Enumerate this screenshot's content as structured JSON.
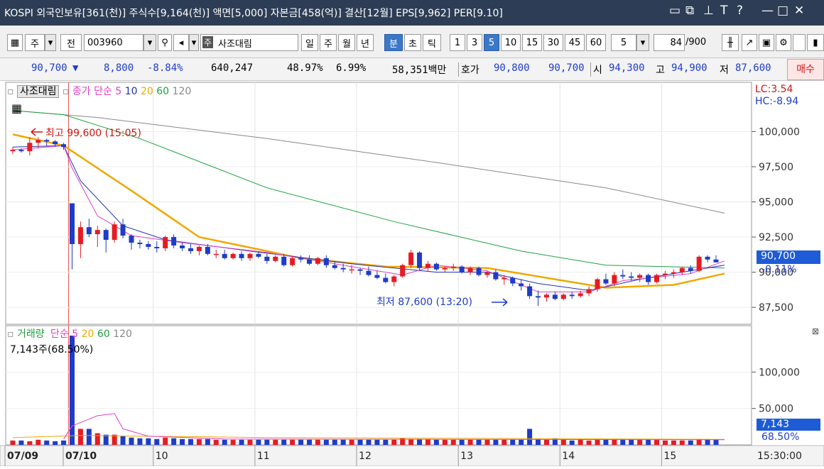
{
  "title": "KOSPI 외국인보유[361(천)] 주식수[9,164(천)] 액면[5,000] 자본금[458(억)] 결산[12월] EPS[9,962] PER[9.10]",
  "toolbar": {
    "market": "주",
    "type": "전",
    "code": "003960",
    "badge": "주",
    "name": "사조대림",
    "periods": [
      "일",
      "주",
      "월",
      "년",
      "분",
      "초",
      "틱"
    ],
    "minutes": [
      "1",
      "3",
      "5",
      "10",
      "15",
      "30",
      "45",
      "60"
    ],
    "sel": "5",
    "count": "84",
    "total": "/900"
  },
  "quote": {
    "price": "90,700",
    "change": "8,800",
    "rate": "-8.84%",
    "volume": "640,247",
    "vol_rate": "48.97%",
    "turnover": "6.99%",
    "amount": "58,351백만",
    "hoga_label": "호가",
    "ask": "90,800",
    "bid": "90,700",
    "open_label": "시",
    "open": "94,300",
    "high_label": "고",
    "high": "94,900",
    "low_label": "저",
    "low": "87,600",
    "buy": "매수"
  },
  "price_panel": {
    "name": "사조대림",
    "legend": [
      "종가 단순",
      "5",
      "10",
      "20",
      "60",
      "120"
    ],
    "lc": "LC:3.54",
    "hc": "HC:-8.94",
    "high_note": "최고 99,600 (15:05)",
    "low_note": "최저 87,600 (13:20)",
    "cur": "90,700",
    "cur_pct": "-0.11%"
  },
  "volume_panel": {
    "legend": [
      "거래량",
      "단순 5",
      "20",
      "60",
      "120"
    ],
    "info": "7,143주(68.50%)",
    "cur": "7,143",
    "cur_pct": "68.50%"
  },
  "x_labels": [
    "07/09",
    "07/10",
    "10",
    "11",
    "12",
    "13",
    "14",
    "15",
    "15:30:00"
  ],
  "colors": {
    "up": "#e51c23",
    "down": "#1e3cc8",
    "ma5": "#e040c0",
    "ma10": "#2030b0",
    "ma20": "#f0a800",
    "ma60": "#20a040",
    "ma120": "#888888"
  },
  "chart_data": {
    "type": "candlestick",
    "y_ticks": [
      100000,
      97500,
      95000,
      92500,
      90000,
      87500
    ],
    "y_range": [
      86300,
      103500
    ],
    "vol_ticks": [
      100000,
      50000
    ],
    "vol_range": [
      0,
      150000
    ],
    "candles": [
      [
        98600,
        98900,
        98400,
        98700
      ],
      [
        98700,
        98800,
        98500,
        98600
      ],
      [
        98600,
        99600,
        98300,
        99200
      ],
      [
        99200,
        99600,
        98800,
        99400
      ],
      [
        99400,
        99500,
        99000,
        99300
      ],
      [
        99300,
        99400,
        98900,
        99100
      ],
      [
        99100,
        99200,
        98700,
        98900
      ],
      [
        94900,
        94900,
        90200,
        92000
      ],
      [
        92000,
        93600,
        91000,
        93200
      ],
      [
        93200,
        93800,
        92500,
        92700
      ],
      [
        92700,
        93300,
        91800,
        93000
      ],
      [
        93000,
        93100,
        91400,
        92300
      ],
      [
        92300,
        93600,
        92100,
        93400
      ],
      [
        93400,
        93800,
        92400,
        92600
      ],
      [
        92600,
        92700,
        91600,
        92100
      ],
      [
        92100,
        92300,
        91700,
        92000
      ],
      [
        92000,
        92200,
        91600,
        91800
      ],
      [
        91800,
        92200,
        91400,
        91700
      ],
      [
        91700,
        92600,
        91500,
        92500
      ],
      [
        92500,
        92700,
        91700,
        91900
      ],
      [
        91900,
        92100,
        91500,
        91700
      ],
      [
        91700,
        92000,
        91300,
        91500
      ],
      [
        91500,
        91900,
        91200,
        91800
      ],
      [
        91800,
        92000,
        91200,
        91300
      ],
      [
        91300,
        91600,
        91000,
        91300
      ],
      [
        91300,
        91600,
        90900,
        91000
      ],
      [
        91000,
        91400,
        90900,
        91300
      ],
      [
        91300,
        91500,
        90800,
        91000
      ],
      [
        91000,
        91400,
        90800,
        91300
      ],
      [
        91300,
        91500,
        91000,
        91100
      ],
      [
        91100,
        91300,
        90600,
        90800
      ],
      [
        90800,
        91200,
        90700,
        91100
      ],
      [
        91100,
        91300,
        90400,
        90500
      ],
      [
        90500,
        91100,
        90400,
        91000
      ],
      [
        91000,
        91200,
        90700,
        90900
      ],
      [
        90900,
        91200,
        90500,
        90600
      ],
      [
        90600,
        91100,
        90500,
        91000
      ],
      [
        91000,
        91200,
        90300,
        90500
      ],
      [
        90500,
        90800,
        90200,
        90300
      ],
      [
        90300,
        90600,
        90000,
        90200
      ],
      [
        90200,
        90500,
        89900,
        90200
      ],
      [
        90200,
        90300,
        89800,
        90100
      ],
      [
        90100,
        90400,
        89700,
        89800
      ],
      [
        89800,
        90100,
        89500,
        89600
      ],
      [
        89600,
        89900,
        89200,
        89300
      ],
      [
        89300,
        89800,
        89000,
        89700
      ],
      [
        89700,
        90600,
        89600,
        90500
      ],
      [
        90500,
        91600,
        90300,
        91400
      ],
      [
        91400,
        91500,
        90100,
        90300
      ],
      [
        90300,
        90800,
        90100,
        90600
      ],
      [
        90600,
        90700,
        90100,
        90200
      ],
      [
        90200,
        90400,
        90000,
        90300
      ],
      [
        90300,
        90600,
        90100,
        90400
      ],
      [
        90400,
        90500,
        89900,
        90000
      ],
      [
        90000,
        90400,
        89800,
        90300
      ],
      [
        90300,
        90400,
        89700,
        89800
      ],
      [
        89800,
        90100,
        89600,
        90000
      ],
      [
        90000,
        90200,
        89400,
        89500
      ],
      [
        89500,
        89800,
        89100,
        89600
      ],
      [
        89600,
        89700,
        89000,
        89200
      ],
      [
        89200,
        89500,
        88700,
        89000
      ],
      [
        89000,
        89200,
        88100,
        88300
      ],
      [
        88300,
        88700,
        87600,
        88200
      ],
      [
        88200,
        88500,
        87900,
        88400
      ],
      [
        88400,
        88600,
        88000,
        88100
      ],
      [
        88100,
        88500,
        88000,
        88400
      ],
      [
        88400,
        88600,
        88100,
        88300
      ],
      [
        88300,
        88700,
        88200,
        88500
      ],
      [
        88500,
        89000,
        88300,
        88800
      ],
      [
        88800,
        89600,
        88600,
        89500
      ],
      [
        89500,
        89900,
        89100,
        89200
      ],
      [
        89200,
        90000,
        89000,
        89800
      ],
      [
        89800,
        90200,
        89500,
        89700
      ],
      [
        89700,
        90000,
        89400,
        89600
      ],
      [
        89600,
        89900,
        89300,
        89800
      ],
      [
        89800,
        89900,
        89100,
        89300
      ],
      [
        89300,
        89900,
        89200,
        89800
      ],
      [
        89800,
        90100,
        89500,
        89900
      ],
      [
        89900,
        90200,
        89600,
        90000
      ],
      [
        90000,
        90400,
        89800,
        90300
      ],
      [
        90300,
        90500,
        89900,
        90100
      ],
      [
        90100,
        91200,
        90000,
        91100
      ],
      [
        91100,
        91200,
        90700,
        90900
      ],
      [
        90900,
        91200,
        90700,
        90700
      ]
    ],
    "ma5": [
      [
        0,
        98700
      ],
      [
        6,
        99000
      ],
      [
        7,
        97400
      ],
      [
        10,
        94000
      ],
      [
        14,
        92600
      ],
      [
        20,
        92100
      ],
      [
        30,
        91400
      ],
      [
        40,
        90400
      ],
      [
        46,
        89800
      ],
      [
        50,
        90500
      ],
      [
        56,
        90100
      ],
      [
        62,
        88600
      ],
      [
        68,
        88600
      ],
      [
        72,
        89400
      ],
      [
        80,
        89900
      ],
      [
        84,
        90800
      ]
    ],
    "ma10": [
      [
        0,
        98900
      ],
      [
        6,
        99000
      ],
      [
        8,
        96500
      ],
      [
        13,
        93300
      ],
      [
        18,
        92300
      ],
      [
        28,
        91500
      ],
      [
        40,
        90600
      ],
      [
        50,
        90000
      ],
      [
        56,
        90000
      ],
      [
        62,
        89200
      ],
      [
        68,
        88700
      ],
      [
        74,
        89500
      ],
      [
        84,
        90500
      ]
    ],
    "ma20": [
      [
        0,
        99800
      ],
      [
        6,
        99000
      ],
      [
        14,
        95800
      ],
      [
        22,
        92500
      ],
      [
        34,
        91000
      ],
      [
        44,
        90400
      ],
      [
        56,
        90300
      ],
      [
        64,
        89500
      ],
      [
        70,
        88900
      ],
      [
        78,
        89100
      ],
      [
        84,
        89900
      ]
    ],
    "ma60": [
      [
        0,
        101500
      ],
      [
        6,
        101200
      ],
      [
        15,
        99500
      ],
      [
        30,
        96000
      ],
      [
        45,
        93600
      ],
      [
        60,
        91500
      ],
      [
        70,
        90500
      ],
      [
        84,
        90300
      ]
    ],
    "ma120": [
      [
        0,
        101500
      ],
      [
        10,
        101000
      ],
      [
        30,
        99500
      ],
      [
        50,
        97800
      ],
      [
        70,
        96000
      ],
      [
        84,
        94200
      ]
    ],
    "volumes": [
      6000,
      6000,
      5000,
      7000,
      6000,
      5000,
      6000,
      150000,
      22000,
      22000,
      16000,
      14000,
      14000,
      12000,
      10000,
      9000,
      9000,
      8000,
      10000,
      9000,
      8000,
      8000,
      8000,
      8000,
      7000,
      7000,
      7000,
      7000,
      7000,
      7000,
      7000,
      7000,
      7000,
      7000,
      7000,
      7000,
      7000,
      7000,
      7000,
      7000,
      7000,
      7000,
      7000,
      7000,
      7000,
      7000,
      9000,
      8000,
      8000,
      8000,
      7000,
      7000,
      7000,
      7000,
      7000,
      7000,
      7000,
      7000,
      7000,
      7000,
      7000,
      22000,
      8000,
      7000,
      9000,
      7000,
      6000,
      7000,
      6000,
      7000,
      7000,
      7000,
      7000,
      7000,
      7000,
      7000,
      7000,
      6000,
      6000,
      6000,
      6000,
      8000,
      7000,
      7143
    ],
    "vol_ma5": [
      [
        6,
        8000
      ],
      [
        7,
        26000
      ],
      [
        10,
        40000
      ],
      [
        12,
        43000
      ],
      [
        13,
        22000
      ],
      [
        16,
        12000
      ],
      [
        25,
        8000
      ],
      [
        84,
        7000
      ]
    ],
    "vol_ma20": [
      [
        0,
        10000
      ],
      [
        8,
        13000
      ],
      [
        30,
        10000
      ],
      [
        84,
        7500
      ]
    ]
  }
}
